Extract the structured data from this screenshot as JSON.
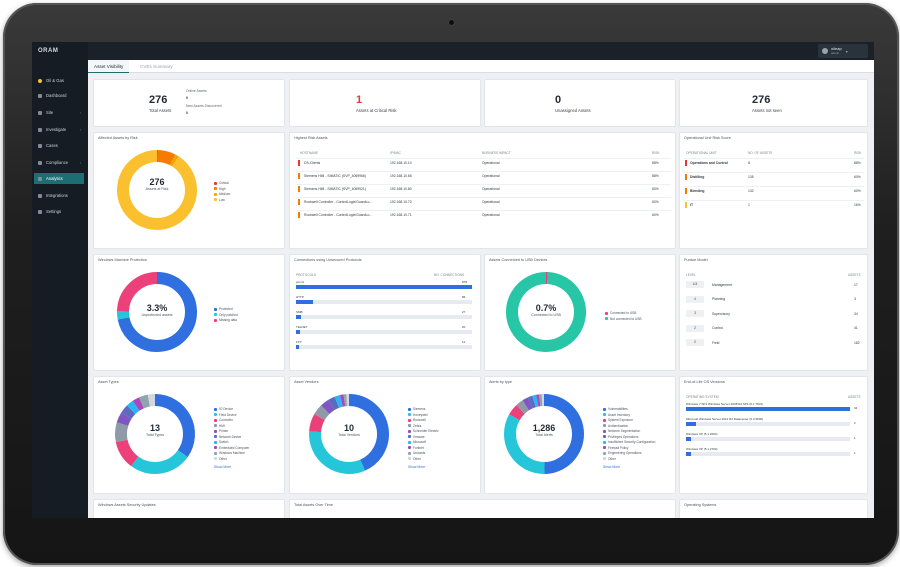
{
  "sidebar": {
    "brand": "ORAM",
    "items": [
      {
        "label": "Oil & Gas"
      },
      {
        "label": "Dashboard"
      },
      {
        "label": "Site"
      },
      {
        "label": "Investigate"
      },
      {
        "label": "Cases"
      },
      {
        "label": "Compliance"
      },
      {
        "label": "Analytics"
      },
      {
        "label": "Integrations"
      },
      {
        "label": "Settings"
      }
    ]
  },
  "user": {
    "name": "oileap",
    "role": "admin"
  },
  "tabs": [
    "Asset Visibility",
    "CVEs Summary"
  ],
  "kpis": {
    "total": {
      "value": "276",
      "label": "Total Assets",
      "online_label": "Online Assets",
      "online_value": "0",
      "new_label": "New Assets Discovered",
      "new_value": "0"
    },
    "critical": {
      "value": "1",
      "label": "Assets at Critical Risk"
    },
    "unassigned": {
      "value": "0",
      "label": "Unassigned Assets"
    },
    "notseen": {
      "value": "276",
      "label": "Assets not seen"
    }
  },
  "affected": {
    "title": "Affected Assets by Risk",
    "center_value": "276",
    "center_label": "Assets at Risk",
    "legend": [
      "Critical",
      "High",
      "Medium",
      "Low"
    ],
    "colors": [
      "#e53935",
      "#f57c00",
      "#ffa000",
      "#fbc02d"
    ],
    "values": [
      1,
      20,
      4,
      251
    ]
  },
  "risk_assets": {
    "title": "Highest Risk Assets",
    "headers": [
      "HOSTNAME",
      "IP/MAC",
      "BUSINESS IMPACT",
      "RISK"
    ],
    "rows": [
      {
        "host": "DS-Clients",
        "ip": "192.168.10.10",
        "impact": "Operational",
        "risk": "88%",
        "color": "#e53935"
      },
      {
        "host": "Siemens HMI - SIMATIC (SVP_4069966)",
        "ip": "192.168.10.66",
        "impact": "Operational",
        "risk": "88%",
        "color": "#f57c00"
      },
      {
        "host": "Siemens HMI - SIMATIC (SVP_4069921)",
        "ip": "192.168.10.80",
        "impact": "Operational",
        "risk": "60%",
        "color": "#f57c00"
      },
      {
        "host": "Rockwell Controller - ControlLogix/GuardLo...",
        "ip": "192.168.10.70",
        "impact": "Operational",
        "risk": "60%",
        "color": "#f57c00"
      },
      {
        "host": "Rockwell Controller - ControlLogix/GuardLo...",
        "ip": "192.168.10.71",
        "impact": "Operational",
        "risk": "60%",
        "color": "#f57c00"
      }
    ]
  },
  "unit_risk": {
    "title": "Operational Unit Risk Score",
    "headers": [
      "OPERATIONAL UNIT",
      "NO. OF ASSETS",
      "RISK"
    ],
    "rows": [
      {
        "unit": "Operations and Control",
        "assets": "8",
        "risk": "88%",
        "color": "#e53935"
      },
      {
        "unit": "Distilling",
        "assets": "135",
        "risk": "60%",
        "color": "#f57c00"
      },
      {
        "unit": "Blending",
        "assets": "132",
        "risk": "60%",
        "color": "#f57c00"
      },
      {
        "unit": "IT",
        "assets": "1",
        "risk": "16%",
        "color": "#fbc02d"
      }
    ]
  },
  "protection": {
    "title": "Windows Machine Protection",
    "center_value": "3.3%",
    "center_label": "Unprotected assets",
    "legend": [
      "Protected",
      "Only patched",
      "Missing data"
    ],
    "colors": [
      "#2f6fe0",
      "#26c6da",
      "#ec407a"
    ],
    "values": [
      72,
      3.3,
      24.7
    ]
  },
  "protocols": {
    "title": "Connections using Unsecured Protocols",
    "headers": [
      "PROTOCOLS",
      "NO. CONNECTIONS"
    ],
    "rows": [
      {
        "name": "pcomt",
        "value": 878,
        "label": "878"
      },
      {
        "name": "HTTP",
        "value": 86,
        "label": "86"
      },
      {
        "name": "SMB",
        "value": 27,
        "label": "27"
      },
      {
        "name": "TELNET",
        "value": 20,
        "label": "20"
      },
      {
        "name": "FTP",
        "value": 12,
        "label": "12"
      }
    ]
  },
  "usb": {
    "title": "Assets Connected to USB Devices",
    "center_value": "0.7%",
    "center_label": "Connected to USB",
    "legend": [
      "Connected to USB",
      "Not connected to USB"
    ],
    "colors": [
      "#ec407a",
      "#26c6a6"
    ],
    "values": [
      0.7,
      99.3
    ]
  },
  "purdue": {
    "title": "Purdue Model",
    "headers": [
      "LEVEL",
      "ASSETS"
    ],
    "rows": [
      {
        "level": "4-5",
        "name": "Management",
        "assets": "17"
      },
      {
        "level": "4",
        "name": "Planning",
        "assets": "3"
      },
      {
        "level": "3",
        "name": "Supervisory",
        "assets": "34"
      },
      {
        "level": "2",
        "name": "Control",
        "assets": "41"
      },
      {
        "level": "0",
        "name": "Field",
        "assets": "182"
      }
    ]
  },
  "types": {
    "title": "Asset Types",
    "center_value": "13",
    "center_label": "Total Types",
    "legend": [
      "IO Device",
      "Field Device",
      "Controller",
      "HMI",
      "Printer",
      "Network Device",
      "Switch",
      "Embedded Computer",
      "Windows Machine",
      "Other"
    ],
    "colors": [
      "#2f6fe0",
      "#26c6da",
      "#ec407a",
      "#8e9aa6",
      "#7e57c2",
      "#5c6bc0",
      "#29b6f6",
      "#ab47bc",
      "#90a4ae",
      "#cfd8dc"
    ],
    "values": [
      96,
      70,
      32,
      22,
      12,
      10,
      8,
      8,
      10,
      8
    ],
    "more": "Show More"
  },
  "vendors": {
    "title": "Asset Vendors",
    "center_value": "10",
    "center_label": "Total Vendors",
    "legend": [
      "Siemens",
      "Honeywell",
      "Rockwell",
      "Zebra",
      "Schneider Electric",
      "Vmware",
      "Microsoft",
      "Fortinet",
      "Unicasts",
      "Other"
    ],
    "colors": [
      "#2f6fe0",
      "#26c6da",
      "#ec407a",
      "#8e9aa6",
      "#7e57c2",
      "#5c6bc0",
      "#29b6f6",
      "#ab47bc",
      "#90a4ae",
      "#cfd8dc"
    ],
    "values": [
      120,
      90,
      20,
      12,
      10,
      8,
      6,
      4,
      3,
      3
    ],
    "more": "Show More"
  },
  "alerts": {
    "title": "Alerts by type",
    "center_value": "1,286",
    "center_label": "Total Alerts",
    "legend": [
      "Vulnerabilities",
      "Asset Inventory",
      "System Exposure",
      "Authentication",
      "Network Segmentation",
      "Privileged Operations",
      "Insufficient Security Configuration",
      "Firewall Policy",
      "Engineering Operations",
      "Other"
    ],
    "colors": [
      "#2f6fe0",
      "#26c6da",
      "#ec407a",
      "#8e9aa6",
      "#7e57c2",
      "#5c6bc0",
      "#29b6f6",
      "#ab47bc",
      "#90a4ae",
      "#cfd8dc"
    ],
    "values": [
      640,
      430,
      60,
      40,
      30,
      25,
      20,
      15,
      14,
      12
    ],
    "more": "Show More"
  },
  "eol": {
    "title": "End-of-Life OS Versions",
    "headers": [
      "OPERATING SYSTEM",
      "ASSETS"
    ],
    "rows": [
      {
        "name": "Windows 7 SP1 Windows Server 2008 R2 SP1 (6.1.7601)",
        "value": 34,
        "label": "34"
      },
      {
        "name": "Microsoft Windows Server 2012 R2 Datacenter (6.3.9600)",
        "value": 2,
        "label": "2"
      },
      {
        "name": "Windows XP (5.1.2600)",
        "value": 1,
        "label": "1"
      },
      {
        "name": "Windows XP (5.1.2700)",
        "value": 1,
        "label": "1"
      }
    ]
  },
  "bottom": {
    "updates": "Windows Assets Security Updates",
    "overtime": "Total Assets Over Time",
    "os": "Operating Systems"
  }
}
